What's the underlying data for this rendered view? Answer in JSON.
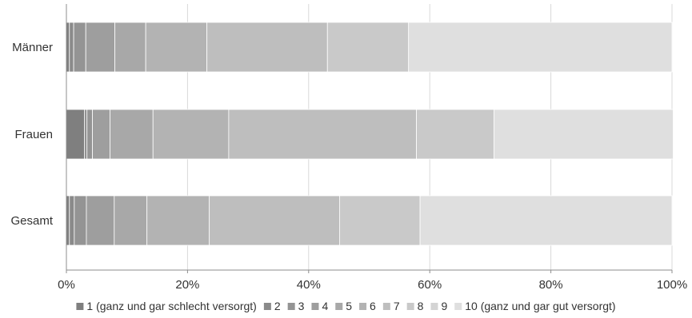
{
  "chart_data": {
    "type": "bar",
    "orientation": "horizontal",
    "stacked": true,
    "percent": true,
    "categories": [
      "Männer",
      "Frauen",
      "Gesamt"
    ],
    "series": [
      {
        "name": "1 (ganz und gar schlecht versorgt)",
        "color": "#7f7f7f",
        "values": [
          0.5,
          3.0,
          0.5
        ]
      },
      {
        "name": "2",
        "color": "#8a8a8a",
        "values": [
          0.7,
          0.4,
          0.8
        ]
      },
      {
        "name": "3",
        "color": "#949494",
        "values": [
          2.0,
          0.9,
          2.0
        ]
      },
      {
        "name": "4",
        "color": "#9e9e9e",
        "values": [
          4.8,
          2.9,
          4.6
        ]
      },
      {
        "name": "5",
        "color": "#a8a8a8",
        "values": [
          5.1,
          7.1,
          5.4
        ]
      },
      {
        "name": "6",
        "color": "#b3b3b3",
        "values": [
          10.1,
          12.5,
          10.3
        ]
      },
      {
        "name": "7",
        "color": "#bebebe",
        "values": [
          19.9,
          31.0,
          21.5
        ]
      },
      {
        "name": "8",
        "color": "#c9c9c9",
        "values": [
          13.4,
          12.8,
          13.3
        ]
      },
      {
        "name": "9",
        "color": "#d4d4d4",
        "values": [
          0.0,
          0.0,
          0.0
        ]
      },
      {
        "name": "10 (ganz und gar gut versorgt)",
        "color": "#dfdfdf",
        "values": [
          43.5,
          29.6,
          41.6
        ]
      }
    ],
    "xlim": [
      0,
      100
    ],
    "x_ticks": [
      0,
      20,
      40,
      60,
      80,
      100
    ],
    "x_tick_labels": [
      "0%",
      "20%",
      "40%",
      "60%",
      "80%",
      "100%"
    ],
    "grid": "vertical",
    "legend_position": "bottom"
  }
}
